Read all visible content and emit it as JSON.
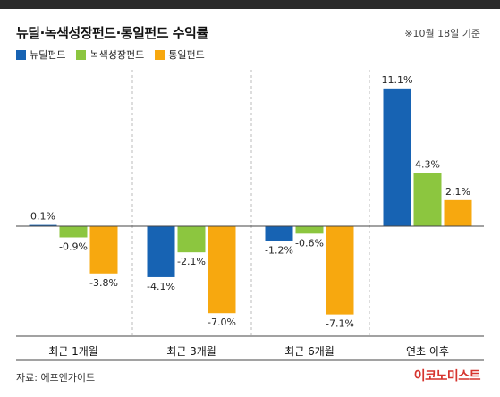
{
  "title": "뉴딜·녹색성장펀드·통일펀드 수익률",
  "date_note": "※10월 18일 기준",
  "source": "자료: 에프앤가이드",
  "brand": "이코노미스트",
  "colors": {
    "background": "#ffffff",
    "topbar": "#2b2b2b",
    "axis": "#444444",
    "divider": "#bbbbbb",
    "brand": "#d6342e"
  },
  "chart_data": {
    "type": "bar",
    "title": "뉴딜·녹색성장펀드·통일펀드 수익률",
    "categories": [
      "최근 1개월",
      "최근 3개월",
      "최근 6개월",
      "연초 이후"
    ],
    "series": [
      {
        "name": "뉴딜펀드",
        "color": "#1763b3",
        "values": [
          0.1,
          -4.1,
          -1.2,
          11.1
        ],
        "labels": [
          "0.1%",
          "-4.1%",
          "-1.2%",
          "11.1%"
        ]
      },
      {
        "name": "녹색성장펀드",
        "color": "#8cc63f",
        "values": [
          -0.9,
          -2.1,
          -0.6,
          4.3
        ],
        "labels": [
          "-0.9%",
          "-2.1%",
          "-0.6%",
          "4.3%"
        ]
      },
      {
        "name": "통일펀드",
        "color": "#f7a80f",
        "values": [
          -3.8,
          -7.0,
          -7.1,
          2.1
        ],
        "labels": [
          "-3.8%",
          "-7.0%",
          "-7.1%",
          "2.1%"
        ]
      }
    ],
    "ylim": [
      -8.4,
      12.6
    ],
    "unit": "%",
    "legend": "top-left",
    "grid": false
  }
}
